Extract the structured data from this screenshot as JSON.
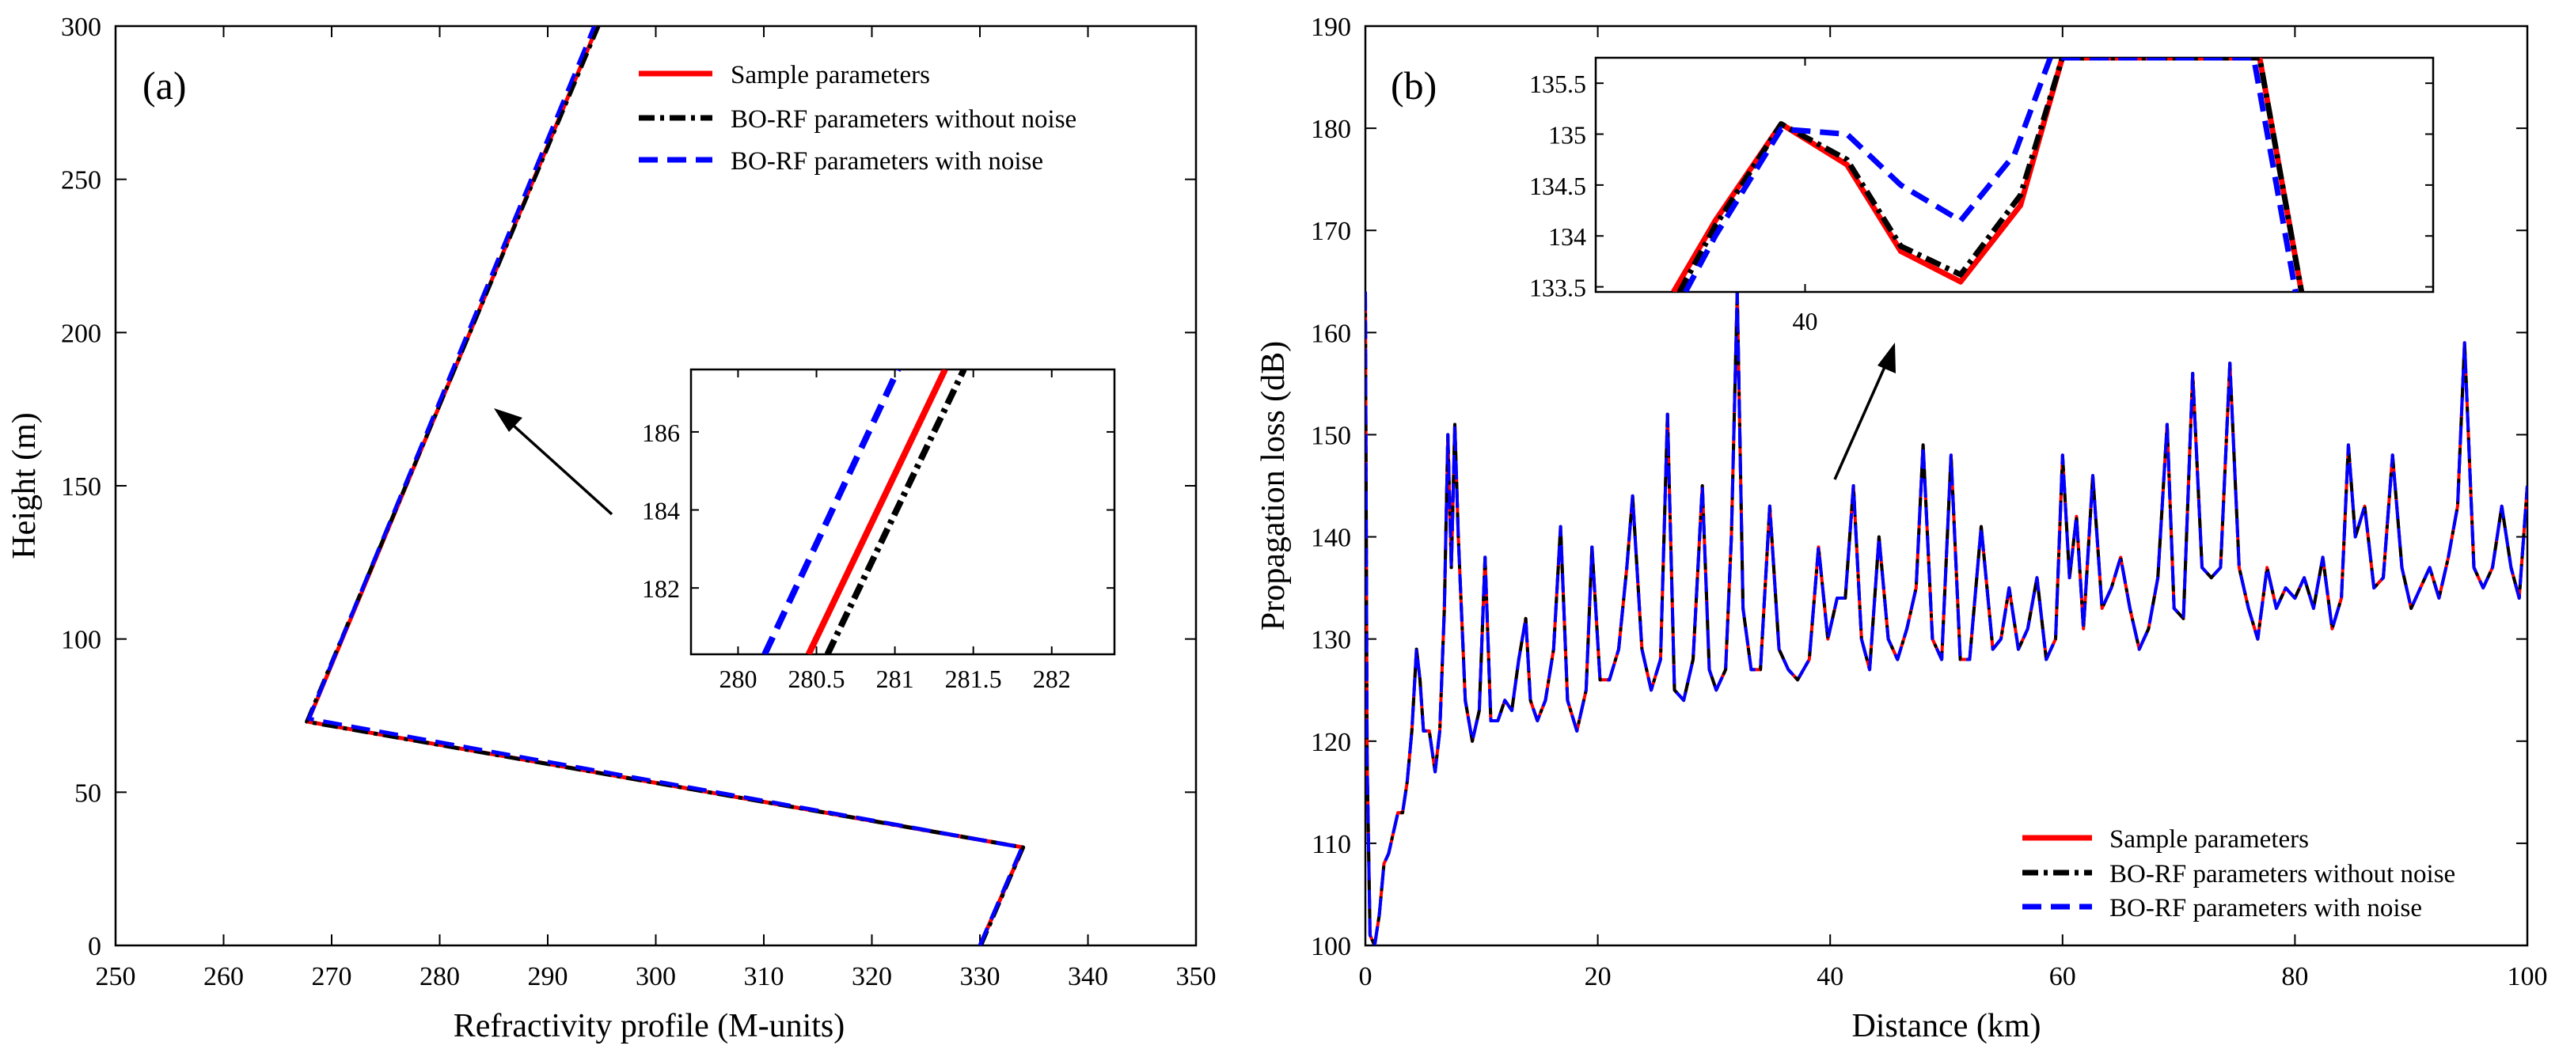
{
  "chart_data": [
    {
      "type": "line",
      "panel_label": "(a)",
      "xlabel": "Refractivity profile (M-units)",
      "ylabel": "Height (m)",
      "xlim": [
        250,
        350
      ],
      "ylim": [
        0,
        300
      ],
      "xticks": [
        250,
        260,
        270,
        280,
        290,
        300,
        310,
        320,
        330,
        340,
        350
      ],
      "yticks": [
        0,
        50,
        100,
        150,
        200,
        250,
        300
      ],
      "legend": [
        "Sample parameters",
        "BO-RF parameters without noise",
        "BO-RF parameters with noise"
      ],
      "legend_position": "top-right",
      "series": [
        {
          "name": "Sample parameters",
          "color": "#ff0000",
          "style": "solid",
          "x": [
            330.0,
            334.0,
            267.8,
            294.6
          ],
          "y": [
            0,
            32,
            73,
            300
          ]
        },
        {
          "name": "BO-RF parameters without noise",
          "color": "#000000",
          "style": "dash-dot",
          "x": [
            330.1,
            334.0,
            267.7,
            294.7
          ],
          "y": [
            0,
            32,
            73,
            300
          ]
        },
        {
          "name": "BO-RF parameters with noise",
          "color": "#0000ff",
          "style": "dashed",
          "x": [
            330.0,
            333.9,
            267.9,
            294.3
          ],
          "y": [
            0,
            32,
            74,
            300
          ]
        }
      ],
      "inset": {
        "xlim": [
          279.7,
          282.4
        ],
        "ylim": [
          180.3,
          187.6
        ],
        "xticks": [
          280,
          280.5,
          281,
          281.5,
          282
        ],
        "yticks": [
          182,
          184,
          186
        ],
        "series": [
          {
            "name": "Sample parameters",
            "color": "#ff0000",
            "style": "solid",
            "x": [
              280.45,
              281.32
            ],
            "y": [
              180.3,
              187.6
            ]
          },
          {
            "name": "BO-RF parameters without noise",
            "color": "#000000",
            "style": "dash-dot",
            "x": [
              280.57,
              281.44
            ],
            "y": [
              180.3,
              187.6
            ]
          },
          {
            "name": "BO-RF parameters with noise",
            "color": "#0000ff",
            "style": "dashed",
            "x": [
              280.17,
              281.02
            ],
            "y": [
              180.3,
              187.6
            ]
          }
        ]
      }
    },
    {
      "type": "line",
      "panel_label": "(b)",
      "xlabel": "Distance (km)",
      "ylabel": "Propagation loss (dB)",
      "xlim": [
        0,
        100
      ],
      "ylim": [
        100,
        190
      ],
      "xticks": [
        0,
        20,
        40,
        60,
        80,
        100
      ],
      "yticks": [
        100,
        110,
        120,
        130,
        140,
        150,
        160,
        170,
        180,
        190
      ],
      "legend": [
        "Sample parameters",
        "BO-RF parameters without noise",
        "BO-RF parameters with noise"
      ],
      "legend_position": "bottom-right",
      "series": [
        {
          "name": "Sample parameters",
          "color": "#ff0000",
          "style": "solid",
          "x": [
            0,
            0.15,
            0.4,
            0.8,
            1.2,
            1.6,
            2,
            2.4,
            2.8,
            3.2,
            3.6,
            4,
            4.4,
            4.7,
            5,
            5.5,
            6,
            6.4,
            6.8,
            7.1,
            7.4,
            7.7,
            8,
            8.6,
            9.2,
            9.8,
            10.3,
            10.8,
            11.4,
            12,
            12.6,
            13.2,
            13.8,
            14.2,
            14.8,
            15.5,
            16.2,
            16.8,
            17.4,
            18.2,
            19,
            19.5,
            20.2,
            21,
            21.8,
            22.5,
            23,
            23.8,
            24.6,
            25.4,
            26,
            26.6,
            27.4,
            28.2,
            29,
            29.6,
            30.2,
            31,
            31.5,
            32,
            32.5,
            33.2,
            34,
            34.8,
            35.6,
            36.4,
            37.2,
            38.2,
            39,
            39.8,
            40.6,
            41.3,
            42,
            42.7,
            43.4,
            44.2,
            45,
            45.8,
            46.6,
            47.4,
            48,
            48.8,
            49.6,
            50.4,
            51.2,
            52,
            53,
            54,
            54.7,
            55.4,
            56.2,
            57,
            57.8,
            58.6,
            59.4,
            60,
            60.6,
            61.2,
            61.8,
            62.6,
            63.4,
            64.2,
            65,
            65.8,
            66.6,
            67.4,
            68.2,
            69,
            69.6,
            70.4,
            71.2,
            72,
            72.8,
            73.6,
            74.4,
            75.2,
            76,
            76.8,
            77.6,
            78.4,
            79.2,
            80,
            80.8,
            81.6,
            82.4,
            83.2,
            84,
            84.6,
            85.2,
            86,
            86.8,
            87.6,
            88.4,
            89.2,
            90,
            90.8,
            91.6,
            92.4,
            93.2,
            94,
            94.6,
            95.4,
            96.2,
            97,
            97.8,
            98.6,
            99.3,
            100
          ],
          "y": [
            164,
            118,
            101,
            100,
            103,
            108,
            109,
            111,
            113,
            113,
            116,
            121,
            129,
            126,
            121,
            121,
            117,
            121,
            133,
            150,
            137,
            151,
            140,
            124,
            120,
            123,
            138,
            122,
            122,
            124,
            123,
            128,
            132,
            124,
            122,
            124,
            129,
            141,
            124,
            121,
            125,
            139,
            126,
            126,
            129,
            137,
            144,
            129,
            125,
            128,
            152,
            125,
            124,
            128,
            145,
            127,
            125,
            127,
            140,
            164,
            133,
            127,
            127,
            143,
            129,
            127,
            126,
            128,
            139,
            130,
            134,
            134,
            145,
            130,
            127,
            140,
            130,
            128,
            131,
            135,
            149,
            130,
            128,
            148,
            128,
            128,
            141,
            129,
            130,
            135,
            129,
            131,
            136,
            128,
            130,
            148,
            136,
            142,
            131,
            146,
            133,
            135,
            138,
            133,
            129,
            131,
            136,
            151,
            133,
            132,
            156,
            137,
            136,
            137,
            157,
            137,
            133,
            130,
            137,
            133,
            135,
            134,
            136,
            133,
            138,
            131,
            134,
            149,
            140,
            143,
            135,
            136,
            148,
            137,
            133,
            135,
            137,
            134,
            138,
            143,
            159,
            137,
            135,
            137,
            143,
            137,
            134,
            145
          ]
        },
        {
          "name": "BO-RF parameters without noise",
          "color": "#000000",
          "style": "dash-dot",
          "same_as": "Sample parameters"
        },
        {
          "name": "BO-RF parameters with noise",
          "color": "#0000ff",
          "style": "dashed",
          "same_as": "Sample parameters"
        }
      ],
      "inset": {
        "xlim": [
          36.5,
          50.5
        ],
        "ylim": [
          133.45,
          135.75
        ],
        "xticks": [
          40
        ],
        "yticks": [
          133.5,
          134,
          134.5,
          135,
          135.5
        ],
        "series": [
          {
            "name": "Sample parameters",
            "color": "#ff0000",
            "style": "solid",
            "x": [
              37.8,
              38.5,
              39.6,
              40.7,
              41.6,
              42.6,
              43.6,
              44.3,
              47.6,
              48.3
            ],
            "y": [
              133.45,
              134.15,
              135.1,
              134.7,
              133.85,
              133.55,
              134.3,
              135.75,
              135.75,
              133.45
            ]
          },
          {
            "name": "BO-RF parameters without noise",
            "color": "#000000",
            "style": "dash-dot",
            "x": [
              37.9,
              38.5,
              39.6,
              40.7,
              41.6,
              42.6,
              43.6,
              44.3,
              47.6,
              48.3
            ],
            "y": [
              133.45,
              134.1,
              135.1,
              134.75,
              133.9,
              133.62,
              134.4,
              135.75,
              135.75,
              133.45
            ]
          },
          {
            "name": "BO-RF parameters with noise",
            "color": "#0000ff",
            "style": "dashed",
            "x": [
              38.0,
              38.5,
              39.6,
              40.7,
              41.6,
              42.6,
              43.5,
              44.1,
              47.5,
              48.2
            ],
            "y": [
              133.45,
              134.0,
              135.05,
              135.0,
              134.5,
              134.15,
              134.8,
              135.75,
              135.75,
              133.45
            ]
          }
        ]
      }
    }
  ]
}
